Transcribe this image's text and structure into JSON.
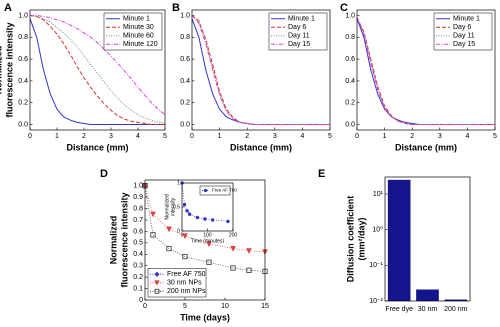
{
  "chart_data": [
    {
      "type": "line",
      "label": "A",
      "xlabel": "Distance (mm)",
      "ylabel": [
        "Normalized",
        "fluorescence intensity"
      ],
      "x": [
        0,
        0.25,
        0.5,
        0.75,
        1,
        1.25,
        1.5,
        1.75,
        2,
        2.25,
        2.5,
        2.75,
        3,
        3.25,
        3.5,
        3.75,
        4,
        4.25,
        4.5,
        4.75,
        5
      ],
      "series": [
        {
          "name": "Minute 1",
          "color": "#3333cc",
          "dash": "solid",
          "values": [
            0.97,
            0.8,
            0.5,
            0.28,
            0.14,
            0.07,
            0.04,
            0.02,
            0.01,
            0,
            0,
            0,
            0,
            0,
            0,
            0,
            0,
            0,
            0,
            0,
            0
          ]
        },
        {
          "name": "Minute 30",
          "color": "#e03030",
          "dash": "dashed",
          "values": [
            1.0,
            0.99,
            0.96,
            0.9,
            0.83,
            0.74,
            0.64,
            0.53,
            0.43,
            0.34,
            0.26,
            0.19,
            0.13,
            0.08,
            0.05,
            0.03,
            0.02,
            0.01,
            0,
            0,
            0
          ]
        },
        {
          "name": "Minute 60",
          "color": "#6a9a6a",
          "dash": "dotted",
          "values": [
            1.0,
            0.99,
            0.97,
            0.94,
            0.89,
            0.84,
            0.78,
            0.71,
            0.63,
            0.55,
            0.47,
            0.39,
            0.31,
            0.24,
            0.18,
            0.13,
            0.09,
            0.06,
            0.04,
            0.02,
            0.01
          ]
        },
        {
          "name": "Minute 120",
          "color": "#dd44dd",
          "dash": "dashdot",
          "values": [
            1.0,
            1.0,
            0.99,
            0.98,
            0.96,
            0.94,
            0.91,
            0.88,
            0.84,
            0.8,
            0.75,
            0.69,
            0.63,
            0.56,
            0.49,
            0.42,
            0.34,
            0.27,
            0.2,
            0.14,
            0.09
          ]
        }
      ],
      "xlim": [
        0,
        5
      ],
      "xticks": [
        0,
        1,
        2,
        3,
        4,
        5
      ],
      "ylim": [
        -0.05,
        1.05
      ],
      "yticks": [
        {
          "value": 0,
          "label": "0.0"
        },
        {
          "value": 0.2,
          "label": "0.2"
        },
        {
          "value": 0.4,
          "label": "0.4"
        },
        {
          "value": 0.6,
          "label": "0.6"
        },
        {
          "value": 0.8,
          "label": "0.8"
        },
        {
          "value": 1,
          "label": "1.0"
        }
      ],
      "legend": "upper right"
    },
    {
      "type": "line",
      "label": "B",
      "xlabel": "Distance (mm)",
      "x": [
        0,
        0.25,
        0.5,
        0.75,
        1,
        1.25,
        1.5,
        1.75,
        2,
        2.25,
        2.5,
        2.75,
        3,
        3.25,
        3.5,
        3.75,
        4,
        4.25,
        4.5,
        4.75,
        5
      ],
      "series": [
        {
          "name": "Minute 1",
          "color": "#3333cc",
          "dash": "solid",
          "values": [
            0.97,
            0.8,
            0.5,
            0.28,
            0.14,
            0.07,
            0.04,
            0.02,
            0.01,
            0,
            0,
            0,
            0,
            0,
            0,
            0,
            0,
            0,
            0,
            0,
            0
          ]
        },
        {
          "name": "Day 6",
          "color": "#e03030",
          "dash": "dashed",
          "values": [
            1.0,
            0.95,
            0.78,
            0.55,
            0.3,
            0.14,
            0.06,
            0.02,
            0.01,
            0,
            0,
            0,
            0,
            0,
            0,
            0,
            0,
            0,
            0,
            0,
            0
          ]
        },
        {
          "name": "Day 11",
          "color": "#6a9a6a",
          "dash": "dotted",
          "values": [
            1.0,
            0.94,
            0.76,
            0.52,
            0.28,
            0.13,
            0.05,
            0.02,
            0.01,
            0,
            0,
            0,
            0,
            0,
            0,
            0,
            0,
            0,
            0,
            0,
            0
          ]
        },
        {
          "name": "Day 15",
          "color": "#dd44dd",
          "dash": "dashdot",
          "values": [
            1.0,
            0.93,
            0.74,
            0.5,
            0.27,
            0.12,
            0.05,
            0.02,
            0.01,
            0,
            0,
            0,
            0,
            0,
            0,
            0,
            0,
            0,
            0,
            0,
            0
          ]
        }
      ],
      "xlim": [
        0,
        5
      ],
      "xticks": [
        0,
        1,
        2,
        3,
        4,
        5
      ],
      "ylim": [
        -0.05,
        1.05
      ],
      "yticks": [
        {
          "value": 0,
          "label": "0.0"
        },
        {
          "value": 0.2,
          "label": "0.2"
        },
        {
          "value": 0.4,
          "label": "0.4"
        },
        {
          "value": 0.6,
          "label": "0.6"
        },
        {
          "value": 0.8,
          "label": "0.8"
        },
        {
          "value": 1,
          "label": "1.0"
        }
      ],
      "legend": "upper right"
    },
    {
      "type": "line",
      "label": "C",
      "xlabel": "Distance (mm)",
      "x": [
        0,
        0.25,
        0.5,
        0.75,
        1,
        1.25,
        1.5,
        1.75,
        2,
        2.25,
        2.5,
        2.75,
        3,
        3.25,
        3.5,
        3.75,
        4,
        4.25,
        4.5,
        4.75,
        5
      ],
      "series": [
        {
          "name": "Minute 1",
          "color": "#3333cc",
          "dash": "solid",
          "values": [
            0.97,
            0.8,
            0.5,
            0.28,
            0.14,
            0.07,
            0.04,
            0.02,
            0.01,
            0,
            0,
            0,
            0,
            0,
            0,
            0,
            0,
            0,
            0,
            0,
            0
          ]
        },
        {
          "name": "Day 6",
          "color": "#e03030",
          "dash": "dashed",
          "values": [
            0.98,
            0.85,
            0.6,
            0.35,
            0.17,
            0.08,
            0.03,
            0.01,
            0,
            0,
            0,
            0,
            0,
            0,
            0,
            0,
            0,
            0,
            0,
            0,
            0
          ]
        },
        {
          "name": "Day 11",
          "color": "#6a9a6a",
          "dash": "dotted",
          "values": [
            0.98,
            0.84,
            0.58,
            0.33,
            0.16,
            0.07,
            0.03,
            0.01,
            0,
            0,
            0,
            0,
            0,
            0,
            0,
            0,
            0,
            0,
            0,
            0,
            0
          ]
        },
        {
          "name": "Day 15",
          "color": "#dd44dd",
          "dash": "dashdot",
          "values": [
            0.98,
            0.83,
            0.56,
            0.32,
            0.15,
            0.07,
            0.03,
            0.01,
            0,
            0,
            0,
            0,
            0,
            0,
            0,
            0,
            0,
            0,
            0,
            0,
            0
          ]
        }
      ],
      "xlim": [
        0,
        5
      ],
      "xticks": [
        0,
        1,
        2,
        3,
        4,
        5
      ],
      "ylim": [
        -0.05,
        1.05
      ],
      "yticks": [
        {
          "value": 0,
          "label": "0.0"
        },
        {
          "value": 0.2,
          "label": "0.2"
        },
        {
          "value": 0.4,
          "label": "0.4"
        },
        {
          "value": 0.6,
          "label": "0.6"
        },
        {
          "value": 0.8,
          "label": "0.8"
        },
        {
          "value": 1,
          "label": "1.0"
        }
      ],
      "legend": "upper right"
    },
    {
      "type": "line",
      "label": "D",
      "xlabel": "Time (days)",
      "ylabel": [
        "Normalized",
        "fluorescence intensity"
      ],
      "x": [
        0,
        1,
        3,
        5,
        8,
        11,
        13,
        15
      ],
      "series": [
        {
          "name": "Free AF 750",
          "color": "#3333cc",
          "dash": "dotted",
          "marker": "diamond",
          "values": [
            1.0,
            null,
            null,
            null,
            null,
            null,
            null,
            null
          ]
        },
        {
          "name": "30 nm NPs",
          "color": "#e04040",
          "dash": "dotted",
          "marker": "triangle",
          "values": [
            1.0,
            0.75,
            0.62,
            0.56,
            0.49,
            0.45,
            0.43,
            0.42
          ]
        },
        {
          "name": "200 nm NPs",
          "color": "#333333",
          "dash": "dotted",
          "marker": "square",
          "values": [
            1.0,
            0.57,
            0.45,
            0.38,
            0.33,
            0.28,
            0.26,
            0.25
          ]
        }
      ],
      "xlim": [
        0,
        15
      ],
      "xticks": [
        0,
        5,
        10,
        15
      ],
      "ylim": [
        0,
        1.05
      ],
      "yticks": [
        0,
        0.1,
        0.2,
        0.3,
        0.4,
        0.5,
        0.6,
        0.7,
        0.8,
        0.9,
        {
          "value": 1,
          "label": "1.0"
        }
      ],
      "legend": "lower left"
    },
    {
      "type": "line",
      "xlabel": "Time (minutes)",
      "ylabel": [
        "Normalized",
        "intensity"
      ],
      "x": [
        0,
        10,
        20,
        30,
        60,
        90,
        120,
        180
      ],
      "series": [
        {
          "name": "Free AF 750",
          "color": "#3333cc",
          "dash": "dotted",
          "marker": "circle",
          "values": [
            1.0,
            0.55,
            0.42,
            0.35,
            0.28,
            0.25,
            0.23,
            0.2
          ]
        }
      ],
      "xlim": [
        0,
        200
      ],
      "xticks": [
        0,
        100,
        200
      ],
      "ylim": [
        0,
        1
      ],
      "yticks": [
        0,
        0.5,
        1
      ],
      "legend": "upper right"
    },
    {
      "type": "bar",
      "label": "E",
      "ylabel": [
        "Diffusion coefficient",
        "(mm²/day)"
      ],
      "categories": [
        "Free dye",
        "30 nm",
        "200 nm"
      ],
      "values": [
        25,
        0.021,
        0.011
      ],
      "color": "#14148c",
      "log_y": true,
      "ylim": [
        0.01,
        30
      ],
      "yticks": [
        {
          "value": 0.01,
          "label": "10⁻²"
        },
        {
          "value": 0.1,
          "label": "10⁻¹"
        },
        {
          "value": 1,
          "label": "10⁰"
        },
        {
          "value": 10,
          "label": "10¹"
        }
      ]
    }
  ]
}
